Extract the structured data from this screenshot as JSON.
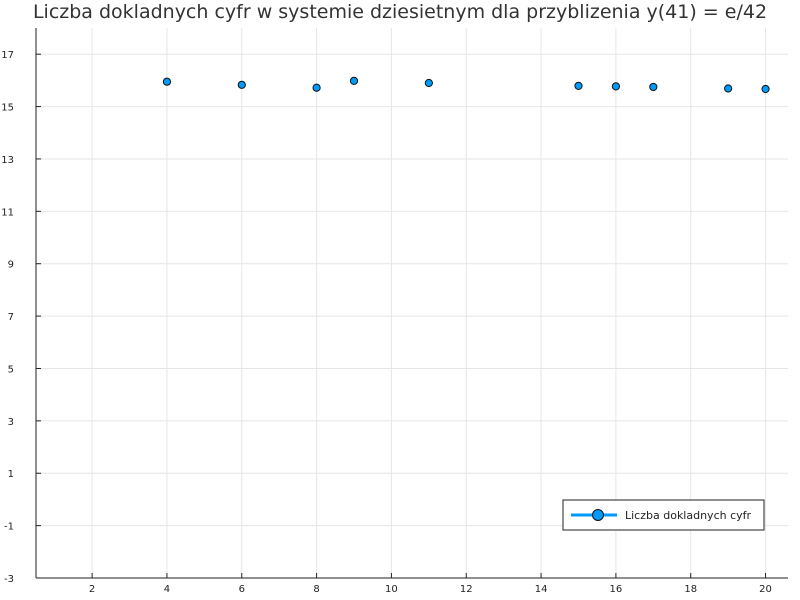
{
  "chart_data": {
    "type": "scatter",
    "title": "Liczba dokladnych cyfr w systemie dziesietnym dla przyblizenia y(41) = e/42",
    "xlabel": "",
    "ylabel": "",
    "xlim": [
      0.5,
      20.6
    ],
    "ylim": [
      -3,
      18
    ],
    "x_ticks": [
      2,
      4,
      6,
      8,
      10,
      12,
      14,
      16,
      18,
      20
    ],
    "y_ticks": [
      -3,
      -1,
      1,
      3,
      5,
      7,
      9,
      11,
      13,
      15,
      17
    ],
    "grid": true,
    "legend_position": "bottom-right",
    "series": [
      {
        "name": "Liczba dokladnych cyfr",
        "color": "#009af9",
        "marker": "circle",
        "x": [
          4,
          6,
          8,
          9,
          11,
          15,
          16,
          17,
          19,
          20
        ],
        "y": [
          15.95,
          15.83,
          15.72,
          15.98,
          15.9,
          15.79,
          15.77,
          15.75,
          15.69,
          15.67
        ]
      }
    ]
  }
}
